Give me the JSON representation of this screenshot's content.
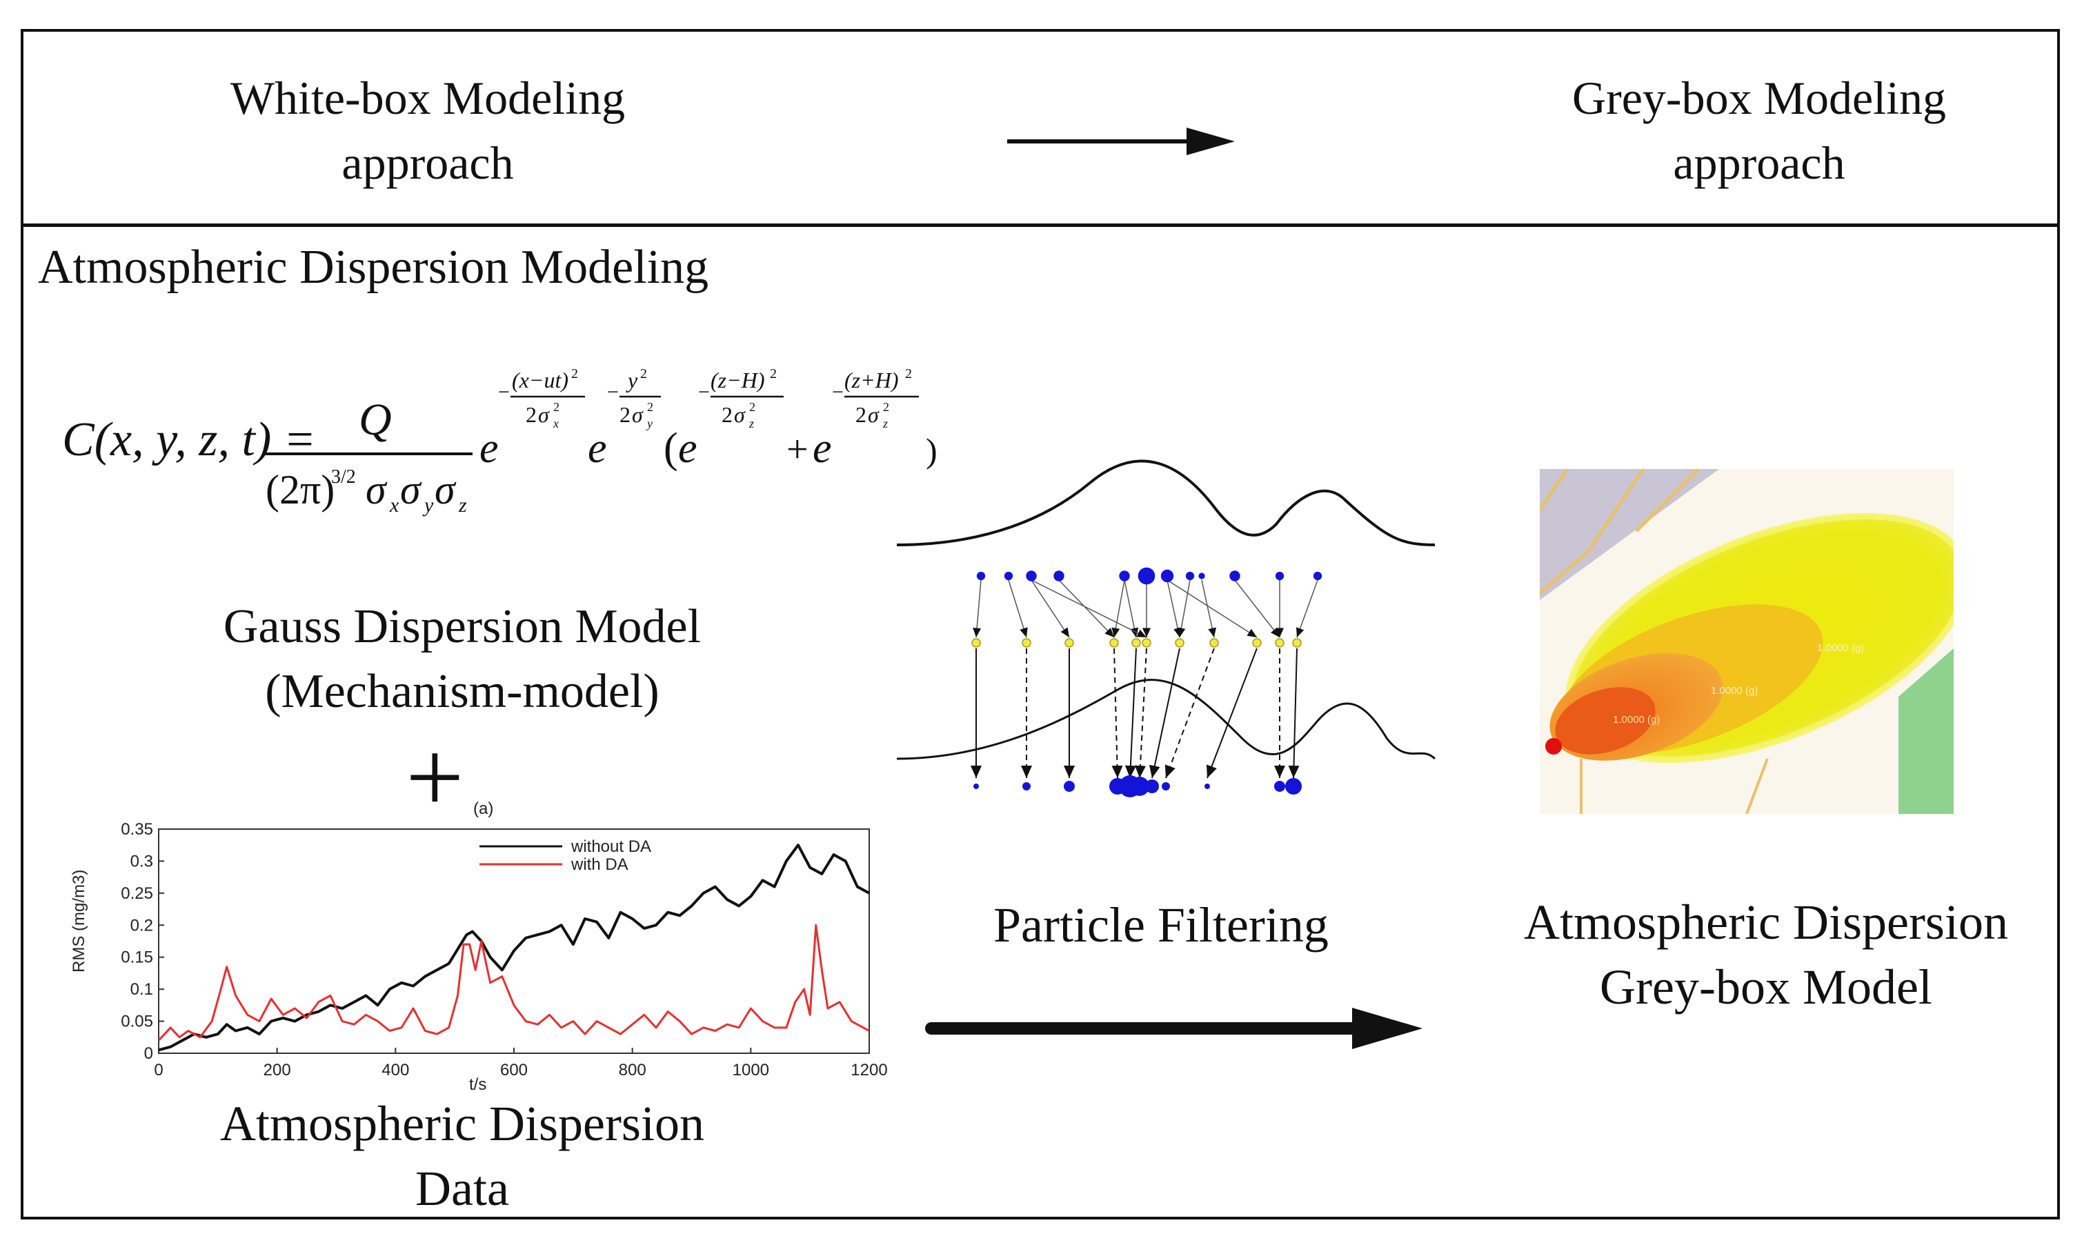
{
  "header": {
    "left_line1": "White-box Modeling",
    "left_line2": "approach",
    "right_line1": "Grey-box Modeling",
    "right_line2": "approach"
  },
  "section_title": "Atmospheric Dispersion Modeling",
  "formula": {
    "lhs": "C(x, y, z, t) =",
    "numerator": "Q",
    "denominator": "(2π)",
    "denominator_exp": "3/2",
    "sigma": "σ",
    "sub_x": "x",
    "sub_y": "y",
    "sub_z": "z",
    "e": "e",
    "exp1_num": "(x−ut)",
    "exp2_num": "y",
    "exp3_num": "(z−H)",
    "exp4_num": "(z+H)",
    "sq": "2",
    "two": "2",
    "minus": "−",
    "open_paren": "(",
    "close_paren": ")",
    "plus": "+"
  },
  "gauss_model": {
    "line1": "Gauss Dispersion Model",
    "line2": "(Mechanism-model)"
  },
  "plus_sign": "+",
  "data_caption": {
    "line1": "Atmospheric Dispersion",
    "line2": "Data"
  },
  "particle_filtering": "Particle Filtering",
  "grey_model": {
    "line1": "Atmospheric Dispersion",
    "line2": "Grey-box Model"
  },
  "map_labels": [
    "1.0000 (g)",
    "1.0000 (g)",
    "1.0000 (g)"
  ],
  "colors": {
    "line_black": "#111111",
    "line_red": "#e53030",
    "particle": "#1414d8",
    "resampled": "#f0e84a",
    "plume_yellow": "#f2f20e",
    "plume_orange": "#f39a22",
    "plume_red": "#ea5a18",
    "map_bg": "#c9c5d4",
    "map_green": "#8fd18f"
  },
  "chart_data": {
    "type": "line",
    "panel_label": "(a)",
    "title": "",
    "xlabel": "t/s",
    "ylabel": "RMS (mg/m3)",
    "xlim": [
      0,
      1200
    ],
    "ylim": [
      0,
      0.35
    ],
    "xticks": [
      0,
      200,
      400,
      600,
      800,
      1000,
      1200
    ],
    "yticks": [
      0,
      0.05,
      0.1,
      0.15,
      0.2,
      0.25,
      0.3,
      0.35
    ],
    "ytick_labels": [
      "0",
      "0.05",
      "0.1",
      "0.15",
      "0.2",
      "0.25",
      "0.3",
      "0.35"
    ],
    "legend_position": "top-right",
    "series": [
      {
        "name": "without DA",
        "color": "#111111",
        "x": [
          0,
          20,
          40,
          60,
          80,
          100,
          115,
          130,
          150,
          170,
          190,
          210,
          230,
          250,
          270,
          290,
          310,
          330,
          350,
          370,
          390,
          410,
          430,
          450,
          470,
          490,
          510,
          520,
          530,
          545,
          560,
          580,
          600,
          620,
          640,
          660,
          680,
          700,
          720,
          740,
          760,
          780,
          800,
          820,
          840,
          860,
          880,
          900,
          920,
          940,
          960,
          980,
          1000,
          1020,
          1040,
          1060,
          1080,
          1100,
          1120,
          1140,
          1160,
          1180,
          1200
        ],
        "y": [
          0.005,
          0.01,
          0.02,
          0.03,
          0.025,
          0.03,
          0.045,
          0.035,
          0.04,
          0.03,
          0.05,
          0.055,
          0.05,
          0.06,
          0.065,
          0.075,
          0.07,
          0.08,
          0.09,
          0.075,
          0.1,
          0.11,
          0.105,
          0.12,
          0.13,
          0.14,
          0.17,
          0.185,
          0.19,
          0.175,
          0.15,
          0.13,
          0.16,
          0.18,
          0.185,
          0.19,
          0.2,
          0.17,
          0.21,
          0.205,
          0.18,
          0.22,
          0.21,
          0.195,
          0.2,
          0.22,
          0.215,
          0.23,
          0.25,
          0.26,
          0.24,
          0.23,
          0.245,
          0.27,
          0.26,
          0.3,
          0.325,
          0.29,
          0.28,
          0.31,
          0.3,
          0.26,
          0.25
        ]
      },
      {
        "name": "with DA",
        "color": "#e53030",
        "x": [
          0,
          20,
          35,
          50,
          70,
          90,
          105,
          115,
          130,
          150,
          170,
          190,
          210,
          230,
          250,
          270,
          290,
          310,
          330,
          350,
          370,
          390,
          410,
          430,
          450,
          470,
          490,
          505,
          515,
          525,
          535,
          545,
          560,
          580,
          600,
          620,
          640,
          660,
          680,
          700,
          720,
          740,
          760,
          780,
          800,
          820,
          840,
          860,
          880,
          900,
          920,
          940,
          960,
          980,
          1000,
          1020,
          1040,
          1060,
          1075,
          1090,
          1100,
          1110,
          1120,
          1130,
          1150,
          1170,
          1190,
          1200
        ],
        "y": [
          0.02,
          0.04,
          0.025,
          0.035,
          0.025,
          0.05,
          0.1,
          0.135,
          0.09,
          0.06,
          0.05,
          0.085,
          0.06,
          0.07,
          0.055,
          0.08,
          0.09,
          0.05,
          0.045,
          0.06,
          0.05,
          0.035,
          0.04,
          0.07,
          0.035,
          0.03,
          0.04,
          0.09,
          0.17,
          0.17,
          0.13,
          0.175,
          0.11,
          0.12,
          0.075,
          0.05,
          0.045,
          0.06,
          0.04,
          0.05,
          0.03,
          0.05,
          0.04,
          0.03,
          0.045,
          0.06,
          0.04,
          0.065,
          0.05,
          0.03,
          0.04,
          0.035,
          0.045,
          0.04,
          0.07,
          0.05,
          0.04,
          0.04,
          0.08,
          0.1,
          0.06,
          0.2,
          0.13,
          0.07,
          0.08,
          0.05,
          0.04,
          0.035
        ]
      }
    ]
  }
}
